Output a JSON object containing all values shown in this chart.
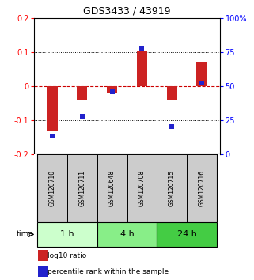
{
  "title": "GDS3433 / 43919",
  "samples": [
    "GSM120710",
    "GSM120711",
    "GSM120648",
    "GSM120708",
    "GSM120715",
    "GSM120716"
  ],
  "log10_ratio": [
    -0.13,
    -0.04,
    -0.02,
    0.105,
    -0.04,
    0.07
  ],
  "percentile_rank_pct": [
    13,
    28,
    46,
    78,
    20,
    52
  ],
  "bar_color": "#cc2222",
  "dot_color": "#2222cc",
  "ylim_left": [
    -0.2,
    0.2
  ],
  "ylim_right": [
    0,
    100
  ],
  "yticks_left": [
    -0.2,
    -0.1,
    0.0,
    0.1,
    0.2
  ],
  "ytick_labels_left": [
    "-0.2",
    "-0.1",
    "0",
    "0.1",
    "0.2"
  ],
  "yticks_right": [
    0,
    25,
    50,
    75,
    100
  ],
  "ytick_labels_right": [
    "0",
    "25",
    "50",
    "75",
    "100%"
  ],
  "groups": [
    {
      "label": "1 h",
      "start": 0,
      "end": 2,
      "color": "#ccffcc"
    },
    {
      "label": "4 h",
      "start": 2,
      "end": 4,
      "color": "#88ee88"
    },
    {
      "label": "24 h",
      "start": 4,
      "end": 6,
      "color": "#44cc44"
    }
  ],
  "time_label": "time",
  "legend_bar_label": "log10 ratio",
  "legend_dot_label": "percentile rank within the sample",
  "bar_width": 0.35,
  "hline_color": "#cc0000",
  "sample_box_color": "#cccccc",
  "title_fontsize": 9,
  "axis_fontsize": 7,
  "sample_fontsize": 5.5,
  "group_fontsize": 8,
  "legend_fontsize": 6.5
}
